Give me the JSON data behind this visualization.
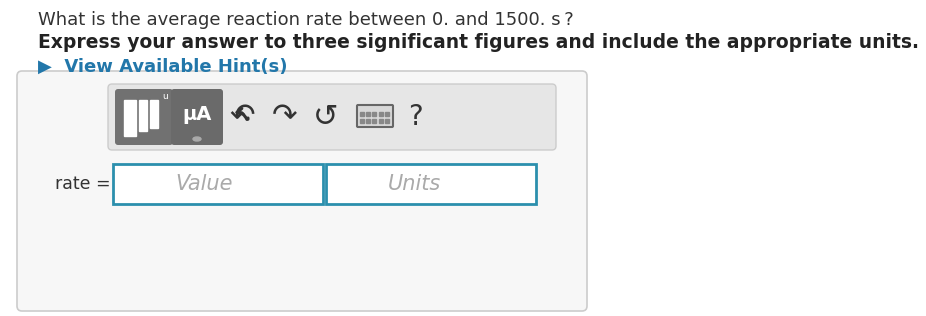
{
  "line1": "What is the average reaction rate between 0. and 1500. s ?",
  "line2": "Express your answer to three significant figures and include the appropriate units.",
  "hint_text": "▶  View Available Hint(s)",
  "rate_label": "rate =",
  "value_placeholder": "Value",
  "units_placeholder": "Units",
  "bg_color": "#ffffff",
  "outer_box_border": "#cccccc",
  "outer_box_bg": "#f7f7f7",
  "toolbar_bg": "#e6e6e6",
  "toolbar_border": "#cccccc",
  "btn1_color": "#717171",
  "btn2_color": "#6a6a6a",
  "input_border": "#2b8fad",
  "input_bg": "#ffffff",
  "hint_color": "#2277aa",
  "placeholder_color": "#aaaaaa",
  "icon_color": "#333333",
  "font_size_line1": 13,
  "font_size_line2": 13.5,
  "font_size_hint": 13,
  "font_size_rate": 12.5,
  "font_size_placeholder": 15,
  "font_size_icon": 18,
  "font_size_mu": 14
}
